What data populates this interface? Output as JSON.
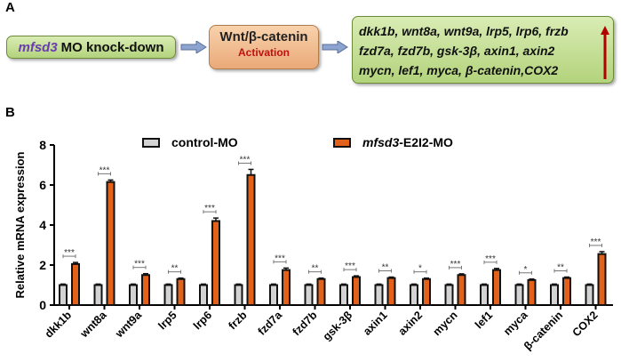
{
  "panel_a": {
    "label": "A",
    "box1": {
      "gene": "mfsd3",
      "text": "MO knock-down"
    },
    "box2": {
      "line1": "Wnt/β-catenin",
      "line2": "Activation"
    },
    "box3": {
      "lines": [
        "dkk1b, wnt8a, wnt9a, lrp5, lrp6, frzb",
        "fzd7a, fzd7b, gsk-3β, axin1, axin2",
        "mycn, lef1, myca, β-catenin,COX2"
      ]
    },
    "up_arrow_color": "#b00000"
  },
  "panel_b": {
    "label": "B"
  },
  "chart_data": {
    "type": "bar",
    "title": "",
    "xlabel": "",
    "ylabel": "Relative mRNA expression",
    "ylim": [
      0,
      8
    ],
    "yticks": [
      "0",
      "2",
      "4",
      "6",
      "8"
    ],
    "legend_position": "top",
    "categories": [
      "dkk1b",
      "wnt8a",
      "wnt9a",
      "lrp5",
      "lrp6",
      "frzb",
      "fzd7a",
      "fzd7b",
      "gsk-3β",
      "axin1",
      "axin2",
      "mycn",
      "lef1",
      "myca",
      "β-catenin",
      "COX2"
    ],
    "series": [
      {
        "name": "control-MO",
        "color": "#d3d3d3",
        "values": [
          1,
          1,
          1,
          1,
          1,
          1,
          1,
          1,
          1,
          1,
          1,
          1,
          1,
          1,
          1,
          1
        ],
        "errors": [
          0.05,
          0.05,
          0.05,
          0.05,
          0.05,
          0.05,
          0.05,
          0.05,
          0.05,
          0.05,
          0.05,
          0.05,
          0.05,
          0.05,
          0.05,
          0.05
        ]
      },
      {
        "name_italic": "mfsd3",
        "name": "-E2I2-MO",
        "color": "#e2621b",
        "values": [
          2.05,
          6.15,
          1.5,
          1.3,
          4.2,
          6.5,
          1.75,
          1.3,
          1.4,
          1.35,
          1.3,
          1.5,
          1.75,
          1.25,
          1.35,
          2.55
        ],
        "errors": [
          0.08,
          0.1,
          0.07,
          0.05,
          0.15,
          0.28,
          0.1,
          0.05,
          0.06,
          0.05,
          0.05,
          0.06,
          0.08,
          0.05,
          0.05,
          0.12
        ]
      }
    ],
    "significance": [
      "***",
      "***",
      "***",
      "**",
      "***",
      "***",
      "***",
      "**",
      "***",
      "**",
      "*",
      "***",
      "***",
      "*",
      "**",
      "***"
    ]
  }
}
